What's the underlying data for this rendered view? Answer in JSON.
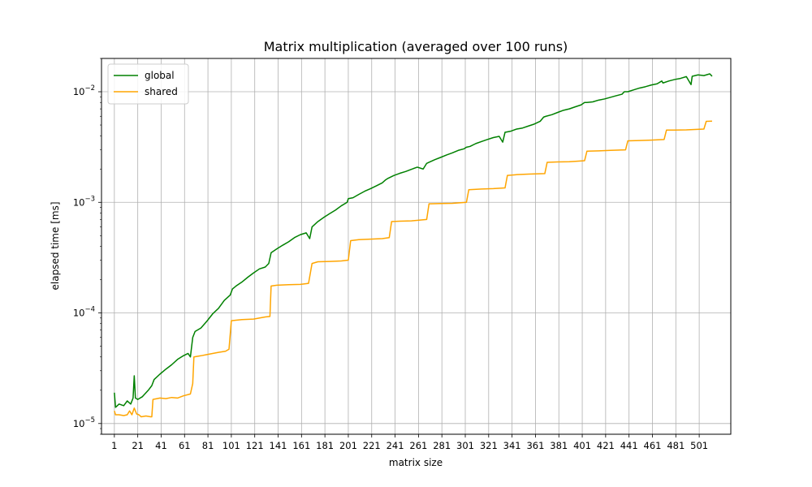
{
  "chart_data": {
    "type": "line",
    "title": "Matrix multiplication (averaged over 100 runs)",
    "xlabel": "matrix size",
    "ylabel": "elapsed time [ms]",
    "x_scale": "linear",
    "y_scale": "log",
    "xlim": [
      -10,
      528
    ],
    "ylim": [
      8e-06,
      0.02
    ],
    "grid": true,
    "legend_position": "top-left",
    "x_ticks": [
      1,
      21,
      41,
      61,
      81,
      101,
      121,
      141,
      161,
      181,
      201,
      221,
      241,
      261,
      281,
      301,
      321,
      341,
      361,
      381,
      401,
      421,
      441,
      461,
      481,
      501
    ],
    "y_ticks": [
      {
        "value": 1e-05,
        "base": "10",
        "exp": "−5"
      },
      {
        "value": 0.0001,
        "base": "10",
        "exp": "−4"
      },
      {
        "value": 0.001,
        "base": "10",
        "exp": "−3"
      },
      {
        "value": 0.01,
        "base": "10",
        "exp": "−2"
      }
    ],
    "series": [
      {
        "name": "global",
        "color": "#008000",
        "points": [
          [
            1,
            1.9e-05
          ],
          [
            2,
            1.4e-05
          ],
          [
            5,
            1.5e-05
          ],
          [
            9,
            1.45e-05
          ],
          [
            12,
            1.6e-05
          ],
          [
            15,
            1.5e-05
          ],
          [
            17,
            1.7e-05
          ],
          [
            18,
            2.7e-05
          ],
          [
            19,
            1.7e-05
          ],
          [
            21,
            1.65e-05
          ],
          [
            25,
            1.75e-05
          ],
          [
            30,
            2e-05
          ],
          [
            33,
            2.2e-05
          ],
          [
            35,
            2.5e-05
          ],
          [
            40,
            2.8e-05
          ],
          [
            45,
            3.1e-05
          ],
          [
            50,
            3.4e-05
          ],
          [
            55,
            3.8e-05
          ],
          [
            60,
            4.1e-05
          ],
          [
            64,
            4.3e-05
          ],
          [
            66,
            4e-05
          ],
          [
            68,
            6e-05
          ],
          [
            70,
            6.8e-05
          ],
          [
            75,
            7.3e-05
          ],
          [
            80,
            8.4e-05
          ],
          [
            85,
            9.8e-05
          ],
          [
            90,
            0.00011
          ],
          [
            95,
            0.00013
          ],
          [
            100,
            0.000145
          ],
          [
            102,
            0.000165
          ],
          [
            105,
            0.000175
          ],
          [
            110,
            0.00019
          ],
          [
            115,
            0.00021
          ],
          [
            120,
            0.00023
          ],
          [
            125,
            0.00025
          ],
          [
            130,
            0.00026
          ],
          [
            133,
            0.00028
          ],
          [
            135,
            0.00035
          ],
          [
            140,
            0.00038
          ],
          [
            145,
            0.00041
          ],
          [
            150,
            0.00044
          ],
          [
            155,
            0.00048
          ],
          [
            160,
            0.00051
          ],
          [
            165,
            0.00053
          ],
          [
            168,
            0.00047
          ],
          [
            170,
            0.0006
          ],
          [
            175,
            0.00067
          ],
          [
            180,
            0.00073
          ],
          [
            185,
            0.00079
          ],
          [
            190,
            0.00085
          ],
          [
            195,
            0.00093
          ],
          [
            200,
            0.001
          ],
          [
            201,
            0.00108
          ],
          [
            205,
            0.0011
          ],
          [
            210,
            0.00118
          ],
          [
            215,
            0.00126
          ],
          [
            220,
            0.00133
          ],
          [
            225,
            0.00141
          ],
          [
            230,
            0.0015
          ],
          [
            233,
            0.0016
          ],
          [
            235,
            0.00165
          ],
          [
            240,
            0.00175
          ],
          [
            245,
            0.00183
          ],
          [
            250,
            0.0019
          ],
          [
            255,
            0.00199
          ],
          [
            260,
            0.00208
          ],
          [
            265,
            0.002
          ],
          [
            268,
            0.00225
          ],
          [
            270,
            0.0023
          ],
          [
            275,
            0.00243
          ],
          [
            280,
            0.00255
          ],
          [
            285,
            0.00268
          ],
          [
            290,
            0.0028
          ],
          [
            295,
            0.00295
          ],
          [
            300,
            0.00305
          ],
          [
            302,
            0.00315
          ],
          [
            305,
            0.0032
          ],
          [
            310,
            0.0034
          ],
          [
            315,
            0.00355
          ],
          [
            320,
            0.0037
          ],
          [
            325,
            0.00385
          ],
          [
            330,
            0.00395
          ],
          [
            333,
            0.0035
          ],
          [
            335,
            0.0043
          ],
          [
            340,
            0.0044
          ],
          [
            345,
            0.0046
          ],
          [
            350,
            0.0047
          ],
          [
            355,
            0.0049
          ],
          [
            360,
            0.0051
          ],
          [
            365,
            0.0054
          ],
          [
            368,
            0.0059
          ],
          [
            370,
            0.006
          ],
          [
            375,
            0.0062
          ],
          [
            380,
            0.0065
          ],
          [
            385,
            0.0068
          ],
          [
            390,
            0.007
          ],
          [
            395,
            0.0073
          ],
          [
            400,
            0.0076
          ],
          [
            403,
            0.008
          ],
          [
            405,
            0.008
          ],
          [
            410,
            0.0081
          ],
          [
            415,
            0.0084
          ],
          [
            420,
            0.0086
          ],
          [
            425,
            0.0089
          ],
          [
            430,
            0.0092
          ],
          [
            435,
            0.0095
          ],
          [
            437,
            0.01
          ],
          [
            440,
            0.01
          ],
          [
            445,
            0.0104
          ],
          [
            450,
            0.0108
          ],
          [
            455,
            0.0111
          ],
          [
            460,
            0.0115
          ],
          [
            465,
            0.0118
          ],
          [
            469,
            0.0125
          ],
          [
            470,
            0.012
          ],
          [
            475,
            0.0125
          ],
          [
            480,
            0.0129
          ],
          [
            485,
            0.0132
          ],
          [
            490,
            0.0137
          ],
          [
            494,
            0.0116
          ],
          [
            495,
            0.0138
          ],
          [
            500,
            0.0142
          ],
          [
            505,
            0.014
          ],
          [
            510,
            0.0145
          ],
          [
            512,
            0.0138
          ]
        ]
      },
      {
        "name": "shared",
        "color": "#ffa500",
        "points": [
          [
            1,
            1.3e-05
          ],
          [
            2,
            1.2e-05
          ],
          [
            5,
            1.2e-05
          ],
          [
            9,
            1.18e-05
          ],
          [
            12,
            1.2e-05
          ],
          [
            14,
            1.3e-05
          ],
          [
            16,
            1.2e-05
          ],
          [
            18,
            1.38e-05
          ],
          [
            20,
            1.22e-05
          ],
          [
            22,
            1.2e-05
          ],
          [
            24,
            1.15e-05
          ],
          [
            28,
            1.17e-05
          ],
          [
            32,
            1.15e-05
          ],
          [
            33,
            1.15e-05
          ],
          [
            34,
            1.65e-05
          ],
          [
            40,
            1.7e-05
          ],
          [
            45,
            1.68e-05
          ],
          [
            50,
            1.72e-05
          ],
          [
            55,
            1.7e-05
          ],
          [
            60,
            1.78e-05
          ],
          [
            66,
            1.85e-05
          ],
          [
            68,
            2.3e-05
          ],
          [
            69,
            4e-05
          ],
          [
            75,
            4.1e-05
          ],
          [
            80,
            4.2e-05
          ],
          [
            85,
            4.3e-05
          ],
          [
            90,
            4.4e-05
          ],
          [
            96,
            4.5e-05
          ],
          [
            99,
            4.7e-05
          ],
          [
            101,
            8.5e-05
          ],
          [
            105,
            8.6e-05
          ],
          [
            110,
            8.7e-05
          ],
          [
            120,
            8.8e-05
          ],
          [
            130,
            9.2e-05
          ],
          [
            134,
            9.3e-05
          ],
          [
            135,
            0.000175
          ],
          [
            140,
            0.000178
          ],
          [
            150,
            0.00018
          ],
          [
            160,
            0.000181
          ],
          [
            167,
            0.000185
          ],
          [
            170,
            0.00028
          ],
          [
            175,
            0.00029
          ],
          [
            185,
            0.000292
          ],
          [
            195,
            0.000295
          ],
          [
            201,
            0.0003
          ],
          [
            203,
            0.00045
          ],
          [
            210,
            0.00046
          ],
          [
            220,
            0.000465
          ],
          [
            230,
            0.00047
          ],
          [
            236,
            0.00048
          ],
          [
            238,
            0.00067
          ],
          [
            245,
            0.000675
          ],
          [
            255,
            0.00068
          ],
          [
            268,
            0.0007
          ],
          [
            270,
            0.00097
          ],
          [
            280,
            0.000975
          ],
          [
            290,
            0.00098
          ],
          [
            302,
            0.001
          ],
          [
            304,
            0.0013
          ],
          [
            315,
            0.00132
          ],
          [
            325,
            0.00133
          ],
          [
            335,
            0.00135
          ],
          [
            337,
            0.00175
          ],
          [
            345,
            0.00178
          ],
          [
            355,
            0.0018
          ],
          [
            369,
            0.00182
          ],
          [
            371,
            0.0023
          ],
          [
            380,
            0.00232
          ],
          [
            390,
            0.00233
          ],
          [
            403,
            0.00238
          ],
          [
            405,
            0.0029
          ],
          [
            415,
            0.00292
          ],
          [
            425,
            0.00295
          ],
          [
            438,
            0.00298
          ],
          [
            440,
            0.0036
          ],
          [
            450,
            0.00362
          ],
          [
            460,
            0.00365
          ],
          [
            471,
            0.0037
          ],
          [
            473,
            0.0045
          ],
          [
            480,
            0.0045
          ],
          [
            490,
            0.00452
          ],
          [
            505,
            0.0046
          ],
          [
            507,
            0.0054
          ],
          [
            512,
            0.00542
          ]
        ]
      }
    ]
  }
}
